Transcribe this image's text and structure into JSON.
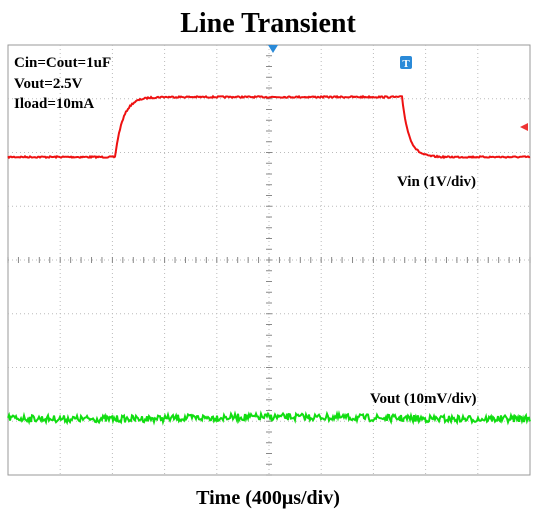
{
  "header": {
    "title": "Line Transient"
  },
  "screen": {
    "notes": [
      "Cin=Cout=1uF",
      "Vout=2.5V",
      "Iload=10mA"
    ],
    "traces": [
      {
        "label": "Vin (1V/div)"
      },
      {
        "label": "Vout (10mV/div)"
      }
    ]
  },
  "footer": {
    "xlabel": "Time (400μs/div)"
  }
}
